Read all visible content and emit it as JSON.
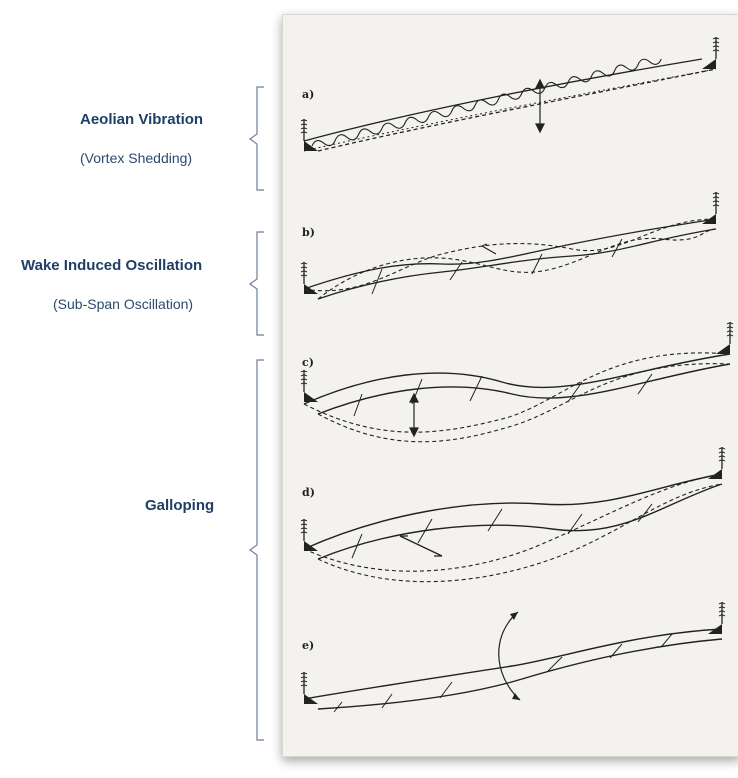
{
  "groups": [
    {
      "title": "Aeolian Vibration",
      "subtitle": "(Vortex Shedding)"
    },
    {
      "title": "Wake Induced Oscillation",
      "subtitle": "(Sub-Span Oscillation)"
    },
    {
      "title": "Galloping",
      "subtitle": ""
    }
  ],
  "figure": {
    "panel_tags": [
      "a)",
      "b)",
      "c)",
      "d)",
      "e)"
    ]
  },
  "colors": {
    "label_text": "#1f3f66",
    "bracket": "#6b7f99",
    "panel_bg": "#f3f2ef",
    "ink": "#222222"
  }
}
